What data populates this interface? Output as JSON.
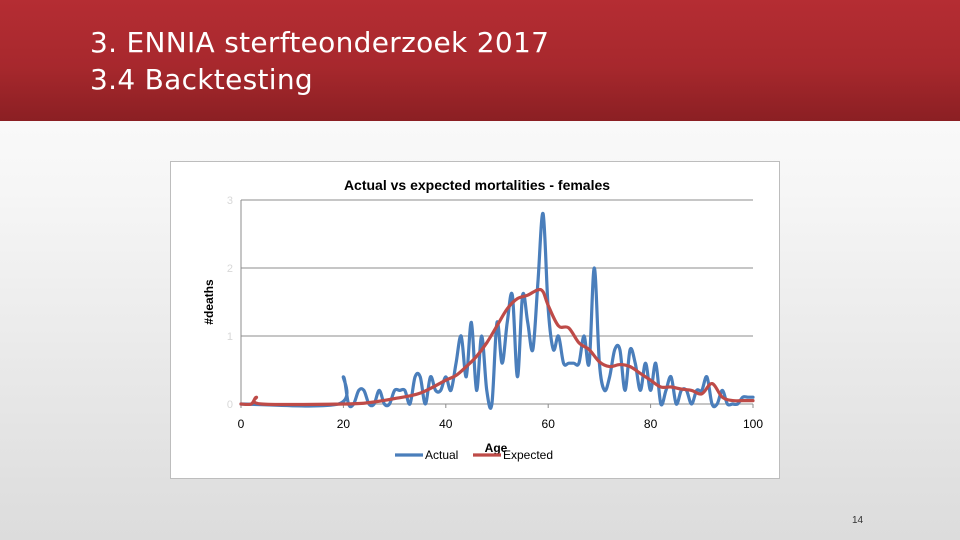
{
  "slide": {
    "title_line1": "3. ENNIA sterfteonderzoek 2017",
    "title_line2": "3.4 Backtesting",
    "page_number": "14"
  },
  "colors": {
    "header": "#a7282d",
    "actual": "#4a7ebb",
    "expected": "#be4b48"
  },
  "chart_data": {
    "type": "line",
    "title": "Actual vs expected mortalities - females",
    "xlabel": "Age",
    "ylabel": "#deaths",
    "xlim": [
      0,
      100
    ],
    "ylim": [
      0,
      3
    ],
    "x_ticks": [
      "0",
      "20",
      "40",
      "60",
      "80",
      "100"
    ],
    "y_ticks": [
      "0",
      "1",
      "2",
      "3"
    ],
    "grid": "horizontal",
    "legend_position": "bottom",
    "series": [
      {
        "name": "Actual",
        "color": "#4a7ebb",
        "points": [
          [
            0,
            0
          ],
          [
            19,
            0
          ],
          [
            20,
            0.4
          ],
          [
            21,
            0
          ],
          [
            22,
            0
          ],
          [
            23,
            0.2
          ],
          [
            24,
            0.2
          ],
          [
            25,
            0
          ],
          [
            26,
            0
          ],
          [
            27,
            0.2
          ],
          [
            28,
            0
          ],
          [
            29,
            0
          ],
          [
            30,
            0.2
          ],
          [
            31,
            0.2
          ],
          [
            32,
            0.2
          ],
          [
            33,
            0
          ],
          [
            34,
            0.4
          ],
          [
            35,
            0.4
          ],
          [
            36,
            0
          ],
          [
            37,
            0.4
          ],
          [
            38,
            0.2
          ],
          [
            39,
            0.2
          ],
          [
            40,
            0.4
          ],
          [
            41,
            0.2
          ],
          [
            42,
            0.6
          ],
          [
            43,
            1.0
          ],
          [
            44,
            0.4
          ],
          [
            45,
            1.2
          ],
          [
            46,
            0.2
          ],
          [
            47,
            1.0
          ],
          [
            48,
            0.2
          ],
          [
            49,
            0
          ],
          [
            50,
            1.2
          ],
          [
            51,
            0.6
          ],
          [
            52,
            1.2
          ],
          [
            53,
            1.6
          ],
          [
            54,
            0.4
          ],
          [
            55,
            1.6
          ],
          [
            56,
            1.2
          ],
          [
            57,
            0.8
          ],
          [
            58,
            1.8
          ],
          [
            59,
            2.8
          ],
          [
            60,
            1.4
          ],
          [
            61,
            0.8
          ],
          [
            62,
            1.0
          ],
          [
            63,
            0.6
          ],
          [
            64,
            0.6
          ],
          [
            65,
            0.6
          ],
          [
            66,
            0.6
          ],
          [
            67,
            1.0
          ],
          [
            68,
            0.6
          ],
          [
            69,
            2.0
          ],
          [
            70,
            0.6
          ],
          [
            71,
            0.2
          ],
          [
            72,
            0.4
          ],
          [
            73,
            0.8
          ],
          [
            74,
            0.8
          ],
          [
            75,
            0.2
          ],
          [
            76,
            0.8
          ],
          [
            77,
            0.6
          ],
          [
            78,
            0.2
          ],
          [
            79,
            0.6
          ],
          [
            80,
            0.2
          ],
          [
            81,
            0.6
          ],
          [
            82,
            0
          ],
          [
            83,
            0.2
          ],
          [
            84,
            0.4
          ],
          [
            85,
            0
          ],
          [
            86,
            0.2
          ],
          [
            87,
            0.2
          ],
          [
            88,
            0
          ],
          [
            89,
            0.2
          ],
          [
            90,
            0.2
          ],
          [
            91,
            0.4
          ],
          [
            92,
            0
          ],
          [
            93,
            0
          ],
          [
            94,
            0.2
          ],
          [
            95,
            0
          ],
          [
            96,
            0
          ],
          [
            97,
            0
          ],
          [
            98,
            0.1
          ],
          [
            99,
            0.1
          ],
          [
            100,
            0.1
          ]
        ]
      },
      {
        "name": "Expected",
        "color": "#be4b48",
        "points": [
          [
            0,
            0
          ],
          [
            2,
            0
          ],
          [
            3,
            0.1
          ],
          [
            4,
            0
          ],
          [
            20,
            0
          ],
          [
            25,
            0.02
          ],
          [
            30,
            0.08
          ],
          [
            35,
            0.16
          ],
          [
            40,
            0.35
          ],
          [
            42,
            0.42
          ],
          [
            44,
            0.55
          ],
          [
            46,
            0.7
          ],
          [
            48,
            0.9
          ],
          [
            50,
            1.15
          ],
          [
            52,
            1.4
          ],
          [
            54,
            1.55
          ],
          [
            56,
            1.6
          ],
          [
            58,
            1.68
          ],
          [
            59,
            1.65
          ],
          [
            60,
            1.45
          ],
          [
            62,
            1.15
          ],
          [
            64,
            1.12
          ],
          [
            66,
            0.9
          ],
          [
            68,
            0.8
          ],
          [
            70,
            0.62
          ],
          [
            72,
            0.55
          ],
          [
            74,
            0.58
          ],
          [
            76,
            0.55
          ],
          [
            78,
            0.45
          ],
          [
            80,
            0.35
          ],
          [
            82,
            0.25
          ],
          [
            84,
            0.25
          ],
          [
            86,
            0.22
          ],
          [
            88,
            0.2
          ],
          [
            90,
            0.15
          ],
          [
            92,
            0.3
          ],
          [
            94,
            0.1
          ],
          [
            96,
            0.05
          ],
          [
            98,
            0.05
          ],
          [
            100,
            0.05
          ]
        ]
      }
    ]
  }
}
